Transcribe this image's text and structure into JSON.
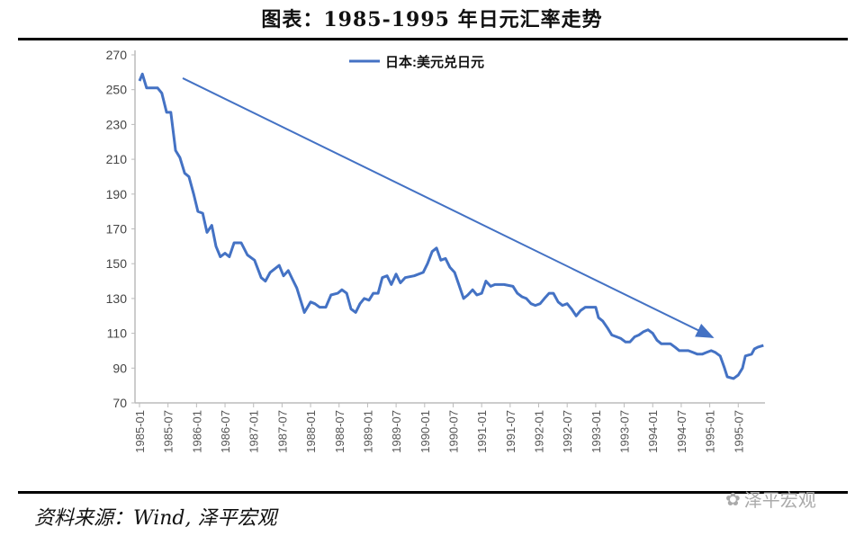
{
  "chart_data": {
    "type": "line",
    "title": "图表：1985-1995 年日元汇率走势",
    "legend": "日本:美元兑日元",
    "legend_position": "top-center",
    "ylim": [
      70,
      270
    ],
    "yticks": [
      70,
      90,
      110,
      130,
      150,
      170,
      190,
      210,
      230,
      250,
      270
    ],
    "xticks": [
      "1985-01",
      "1985-07",
      "1986-01",
      "1986-07",
      "1987-01",
      "1987-07",
      "1988-01",
      "1988-07",
      "1989-01",
      "1989-07",
      "1990-01",
      "1990-07",
      "1991-01",
      "1991-07",
      "1992-01",
      "1992-07",
      "1993-01",
      "1993-07",
      "1994-01",
      "1994-07",
      "1995-01",
      "1995-07"
    ],
    "x_unit": "months since 1985-01",
    "xlim": [
      0,
      132
    ],
    "color": "#4472C4",
    "points": [
      [
        0,
        255
      ],
      [
        0.6,
        259
      ],
      [
        1.5,
        251
      ],
      [
        3.8,
        251
      ],
      [
        4.7,
        248
      ],
      [
        5.7,
        237
      ],
      [
        6.6,
        237
      ],
      [
        7.6,
        215
      ],
      [
        8.5,
        211
      ],
      [
        9.5,
        202
      ],
      [
        10.4,
        200
      ],
      [
        11.4,
        190
      ],
      [
        12.3,
        180
      ],
      [
        13.3,
        179
      ],
      [
        14.2,
        168
      ],
      [
        15.2,
        172
      ],
      [
        16.1,
        160
      ],
      [
        17,
        154
      ],
      [
        18,
        156
      ],
      [
        18.9,
        154
      ],
      [
        19.9,
        162
      ],
      [
        21.4,
        162
      ],
      [
        22.7,
        155
      ],
      [
        24.2,
        152
      ],
      [
        25.6,
        142
      ],
      [
        26.5,
        140
      ],
      [
        27.5,
        145
      ],
      [
        29.4,
        149
      ],
      [
        30.3,
        143
      ],
      [
        31.3,
        146
      ],
      [
        32.2,
        141
      ],
      [
        33.1,
        136
      ],
      [
        34.7,
        122
      ],
      [
        36,
        128
      ],
      [
        36.9,
        127
      ],
      [
        37.9,
        125
      ],
      [
        39.2,
        125
      ],
      [
        40.3,
        132
      ],
      [
        41.7,
        133
      ],
      [
        42.6,
        135
      ],
      [
        43.6,
        133
      ],
      [
        44.5,
        124
      ],
      [
        45.5,
        122
      ],
      [
        46.4,
        127
      ],
      [
        47.3,
        130
      ],
      [
        48.3,
        129
      ],
      [
        49.2,
        133
      ],
      [
        50.2,
        133
      ],
      [
        51.1,
        142
      ],
      [
        52.1,
        143
      ],
      [
        53,
        138
      ],
      [
        54,
        144
      ],
      [
        54.9,
        139
      ],
      [
        55.9,
        142
      ],
      [
        57.8,
        143
      ],
      [
        59.7,
        145
      ],
      [
        60.6,
        150
      ],
      [
        61.6,
        157
      ],
      [
        62.5,
        159
      ],
      [
        63.4,
        152
      ],
      [
        64.4,
        153
      ],
      [
        65.3,
        148
      ],
      [
        66.3,
        145
      ],
      [
        67.2,
        138
      ],
      [
        68.2,
        130
      ],
      [
        69.1,
        132
      ],
      [
        70.1,
        135
      ],
      [
        71,
        132
      ],
      [
        72,
        133
      ],
      [
        72.9,
        140
      ],
      [
        73.9,
        137
      ],
      [
        74.8,
        138
      ],
      [
        76.7,
        138
      ],
      [
        78.6,
        137
      ],
      [
        79.5,
        133
      ],
      [
        80.5,
        131
      ],
      [
        81.4,
        130
      ],
      [
        82.4,
        127
      ],
      [
        83.3,
        126
      ],
      [
        84.3,
        127
      ],
      [
        85.2,
        130
      ],
      [
        86.2,
        133
      ],
      [
        87.1,
        133
      ],
      [
        88.1,
        128
      ],
      [
        89,
        126
      ],
      [
        90,
        127
      ],
      [
        90.9,
        124
      ],
      [
        91.9,
        120
      ],
      [
        92.8,
        123
      ],
      [
        93.8,
        125
      ],
      [
        94.7,
        125
      ],
      [
        96,
        125
      ],
      [
        96.6,
        119
      ],
      [
        97.5,
        117
      ],
      [
        98.5,
        113
      ],
      [
        99.4,
        109
      ],
      [
        100.4,
        108
      ],
      [
        101.3,
        107
      ],
      [
        102.3,
        105
      ],
      [
        103.2,
        105
      ],
      [
        104.2,
        108
      ],
      [
        105.1,
        109
      ],
      [
        106.1,
        111
      ],
      [
        107,
        112
      ],
      [
        108,
        110
      ],
      [
        108.9,
        106
      ],
      [
        109.8,
        104
      ],
      [
        110.8,
        104
      ],
      [
        111.7,
        104
      ],
      [
        112.7,
        102
      ],
      [
        113.6,
        100
      ],
      [
        114.6,
        100
      ],
      [
        115.5,
        100
      ],
      [
        116.5,
        99
      ],
      [
        117.4,
        98
      ],
      [
        118.4,
        98
      ],
      [
        119.3,
        99
      ],
      [
        120.3,
        100
      ],
      [
        121.2,
        99
      ],
      [
        122.2,
        97
      ],
      [
        123.1,
        90
      ],
      [
        123.7,
        85
      ],
      [
        125,
        84
      ],
      [
        126,
        86
      ],
      [
        126.9,
        90
      ],
      [
        127.5,
        97
      ],
      [
        128.8,
        98
      ],
      [
        129.4,
        101
      ],
      [
        130.1,
        102
      ],
      [
        131.3,
        103
      ]
    ],
    "annotation": {
      "type": "arrow",
      "from": [
        9.1,
        256.6
      ],
      "to": [
        120.6,
        107.7
      ],
      "meaning": "downtrend"
    }
  },
  "source": "资料来源：Wind, 泽平宏观",
  "watermark": "泽平宏观"
}
